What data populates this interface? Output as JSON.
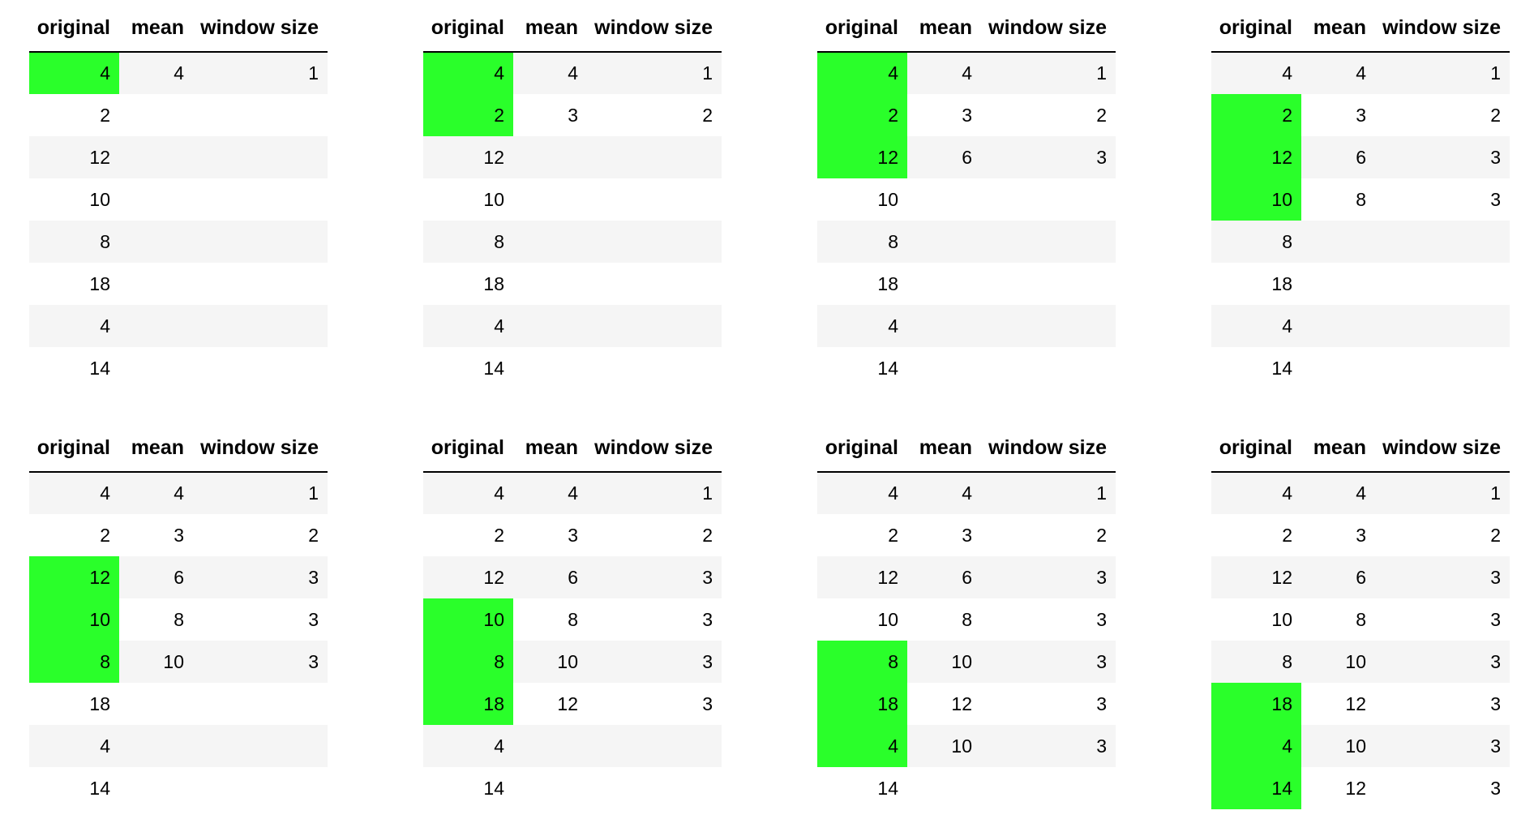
{
  "columns": [
    "original",
    "mean",
    "window size"
  ],
  "highlight_color": "#2aff2a",
  "panels": [
    {
      "highlight_rows": [
        0
      ],
      "rows": [
        [
          "4",
          "4",
          "1"
        ],
        [
          "2",
          "",
          ""
        ],
        [
          "12",
          "",
          ""
        ],
        [
          "10",
          "",
          ""
        ],
        [
          "8",
          "",
          ""
        ],
        [
          "18",
          "",
          ""
        ],
        [
          "4",
          "",
          ""
        ],
        [
          "14",
          "",
          ""
        ]
      ]
    },
    {
      "highlight_rows": [
        0,
        1
      ],
      "rows": [
        [
          "4",
          "4",
          "1"
        ],
        [
          "2",
          "3",
          "2"
        ],
        [
          "12",
          "",
          ""
        ],
        [
          "10",
          "",
          ""
        ],
        [
          "8",
          "",
          ""
        ],
        [
          "18",
          "",
          ""
        ],
        [
          "4",
          "",
          ""
        ],
        [
          "14",
          "",
          ""
        ]
      ]
    },
    {
      "highlight_rows": [
        0,
        1,
        2
      ],
      "rows": [
        [
          "4",
          "4",
          "1"
        ],
        [
          "2",
          "3",
          "2"
        ],
        [
          "12",
          "6",
          "3"
        ],
        [
          "10",
          "",
          ""
        ],
        [
          "8",
          "",
          ""
        ],
        [
          "18",
          "",
          ""
        ],
        [
          "4",
          "",
          ""
        ],
        [
          "14",
          "",
          ""
        ]
      ]
    },
    {
      "highlight_rows": [
        1,
        2,
        3
      ],
      "rows": [
        [
          "4",
          "4",
          "1"
        ],
        [
          "2",
          "3",
          "2"
        ],
        [
          "12",
          "6",
          "3"
        ],
        [
          "10",
          "8",
          "3"
        ],
        [
          "8",
          "",
          ""
        ],
        [
          "18",
          "",
          ""
        ],
        [
          "4",
          "",
          ""
        ],
        [
          "14",
          "",
          ""
        ]
      ]
    },
    {
      "highlight_rows": [
        2,
        3,
        4
      ],
      "rows": [
        [
          "4",
          "4",
          "1"
        ],
        [
          "2",
          "3",
          "2"
        ],
        [
          "12",
          "6",
          "3"
        ],
        [
          "10",
          "8",
          "3"
        ],
        [
          "8",
          "10",
          "3"
        ],
        [
          "18",
          "",
          ""
        ],
        [
          "4",
          "",
          ""
        ],
        [
          "14",
          "",
          ""
        ]
      ]
    },
    {
      "highlight_rows": [
        3,
        4,
        5
      ],
      "rows": [
        [
          "4",
          "4",
          "1"
        ],
        [
          "2",
          "3",
          "2"
        ],
        [
          "12",
          "6",
          "3"
        ],
        [
          "10",
          "8",
          "3"
        ],
        [
          "8",
          "10",
          "3"
        ],
        [
          "18",
          "12",
          "3"
        ],
        [
          "4",
          "",
          ""
        ],
        [
          "14",
          "",
          ""
        ]
      ]
    },
    {
      "highlight_rows": [
        4,
        5,
        6
      ],
      "rows": [
        [
          "4",
          "4",
          "1"
        ],
        [
          "2",
          "3",
          "2"
        ],
        [
          "12",
          "6",
          "3"
        ],
        [
          "10",
          "8",
          "3"
        ],
        [
          "8",
          "10",
          "3"
        ],
        [
          "18",
          "12",
          "3"
        ],
        [
          "4",
          "10",
          "3"
        ],
        [
          "14",
          "",
          ""
        ]
      ]
    },
    {
      "highlight_rows": [
        5,
        6,
        7
      ],
      "rows": [
        [
          "4",
          "4",
          "1"
        ],
        [
          "2",
          "3",
          "2"
        ],
        [
          "12",
          "6",
          "3"
        ],
        [
          "10",
          "8",
          "3"
        ],
        [
          "8",
          "10",
          "3"
        ],
        [
          "18",
          "12",
          "3"
        ],
        [
          "4",
          "10",
          "3"
        ],
        [
          "14",
          "12",
          "3"
        ]
      ]
    }
  ]
}
